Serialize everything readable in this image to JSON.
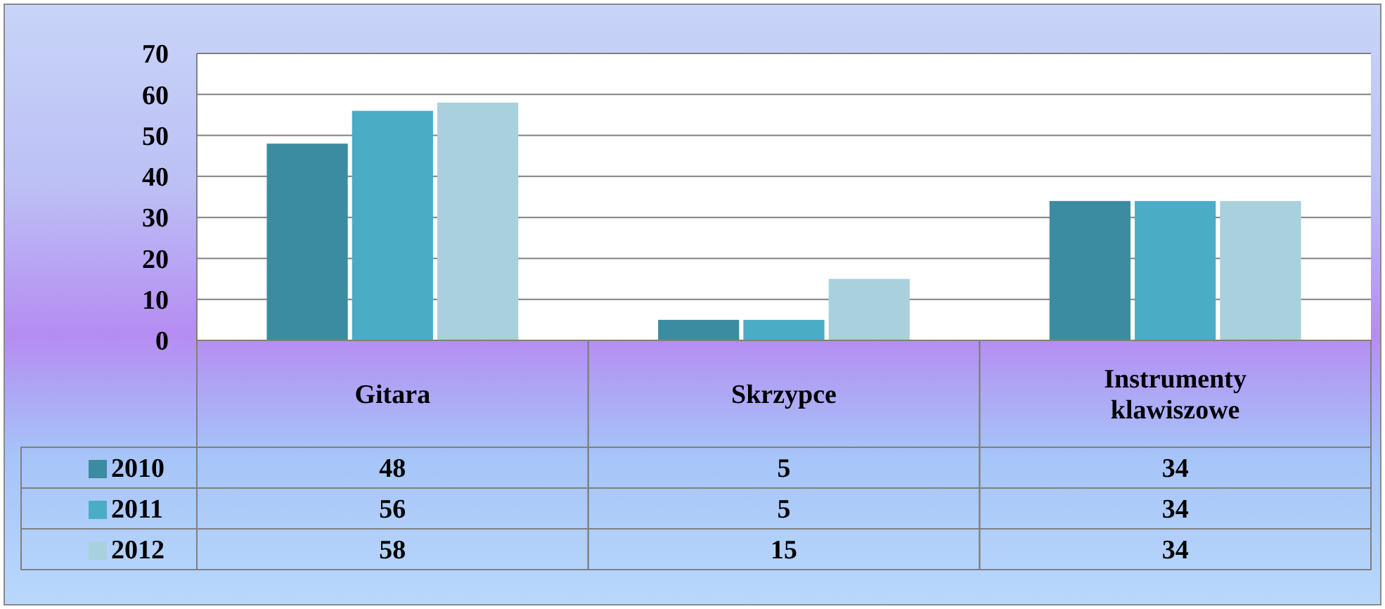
{
  "chart_data": {
    "type": "bar",
    "categories": [
      "Gitara",
      "Skrzypce",
      "Instrumenty klawiszowe"
    ],
    "series": [
      {
        "name": "2010",
        "color": "#3b8ca0",
        "values": [
          48,
          5,
          34
        ]
      },
      {
        "name": "2011",
        "color": "#4bacc6",
        "values": [
          56,
          5,
          34
        ]
      },
      {
        "name": "2012",
        "color": "#a9d0dd",
        "values": [
          58,
          15,
          34
        ]
      }
    ],
    "ylim": [
      0,
      70
    ],
    "yticks": [
      0,
      10,
      20,
      30,
      40,
      50,
      60,
      70
    ],
    "grid": "y",
    "legend": "bottom left",
    "data_labels": true
  }
}
